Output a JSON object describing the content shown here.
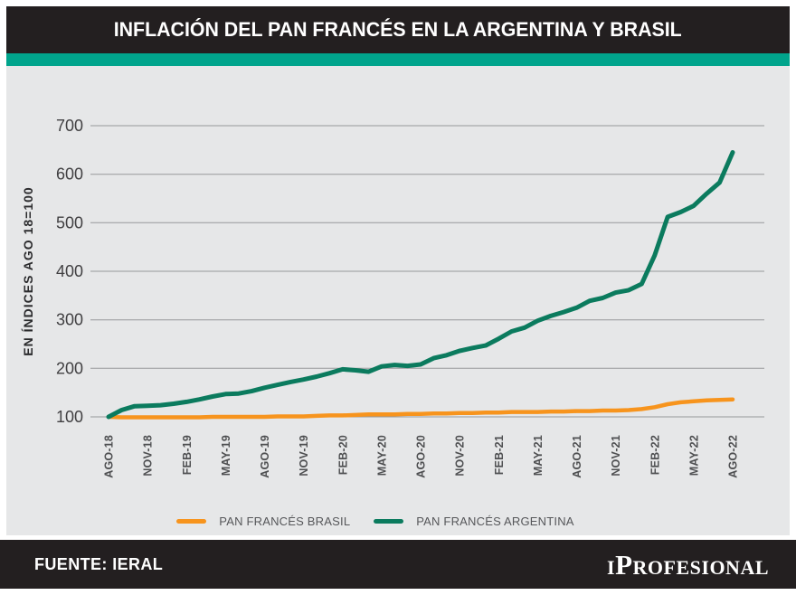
{
  "header": {
    "title": "INFLACIÓN DEL PAN FRANCÉS EN LA ARGENTINA Y BRASIL"
  },
  "legend": {
    "brasil": "PAN FRANCÉS BRASIL",
    "argentina": "PAN FRANCÉS ARGENTINA"
  },
  "footer": {
    "source": "FUENTE: IERAL",
    "brand": "iProfesional"
  },
  "colors": {
    "header_bg": "#231F20",
    "accent_stripe": "#00A48C",
    "panel_bg": "#E6E7E8",
    "gridline": "#97989A",
    "brasil": "#F7941D",
    "argentina": "#0B7B5E",
    "footer_bg": "#231F20"
  },
  "chart_data": {
    "type": "line",
    "title": "INFLACIÓN DEL PAN FRANCÉS EN LA ARGENTINA Y BRASIL",
    "xlabel": "",
    "ylabel": "EN ÍNDICES AGO 18=100",
    "ylim": [
      100,
      700
    ],
    "y_ticks": [
      100,
      200,
      300,
      400,
      500,
      600,
      700
    ],
    "grid": "horizontal",
    "legend_position": "bottom",
    "x_tick_labels": [
      "AGO-18",
      "NOV-18",
      "FEB-19",
      "MAY-19",
      "AGO-19",
      "NOV-19",
      "FEB-20",
      "MAY-20",
      "AGO-20",
      "NOV-20",
      "FEB-21",
      "MAY-21",
      "AGO-21",
      "NOV-21",
      "FEB-22",
      "MAY-22",
      "AGO-22"
    ],
    "x_unit": "monthly points from AGO-18 to AGO-22 (49 values, quarterly tick labels)",
    "series": [
      {
        "name": "PAN FRANCÉS BRASIL",
        "color": "#F7941D",
        "values": [
          100,
          99,
          99,
          99,
          99,
          99,
          99,
          99,
          100,
          100,
          100,
          100,
          100,
          101,
          101,
          101,
          102,
          103,
          103,
          104,
          105,
          105,
          105,
          106,
          106,
          107,
          107,
          108,
          108,
          109,
          109,
          110,
          110,
          110,
          111,
          111,
          112,
          112,
          113,
          113,
          114,
          116,
          120,
          126,
          130,
          132,
          134,
          135,
          136
        ]
      },
      {
        "name": "PAN FRANCÉS ARGENTINA",
        "color": "#0B7B5E",
        "values": [
          100,
          114,
          122,
          123,
          124,
          127,
          131,
          136,
          142,
          147,
          148,
          153,
          160,
          166,
          172,
          177,
          183,
          190,
          198,
          196,
          193,
          204,
          207,
          205,
          208,
          221,
          227,
          236,
          242,
          247,
          261,
          276,
          284,
          298,
          308,
          316,
          325,
          339,
          345,
          356,
          361,
          374,
          433,
          512,
          522,
          535,
          560,
          583,
          645
        ]
      }
    ]
  }
}
